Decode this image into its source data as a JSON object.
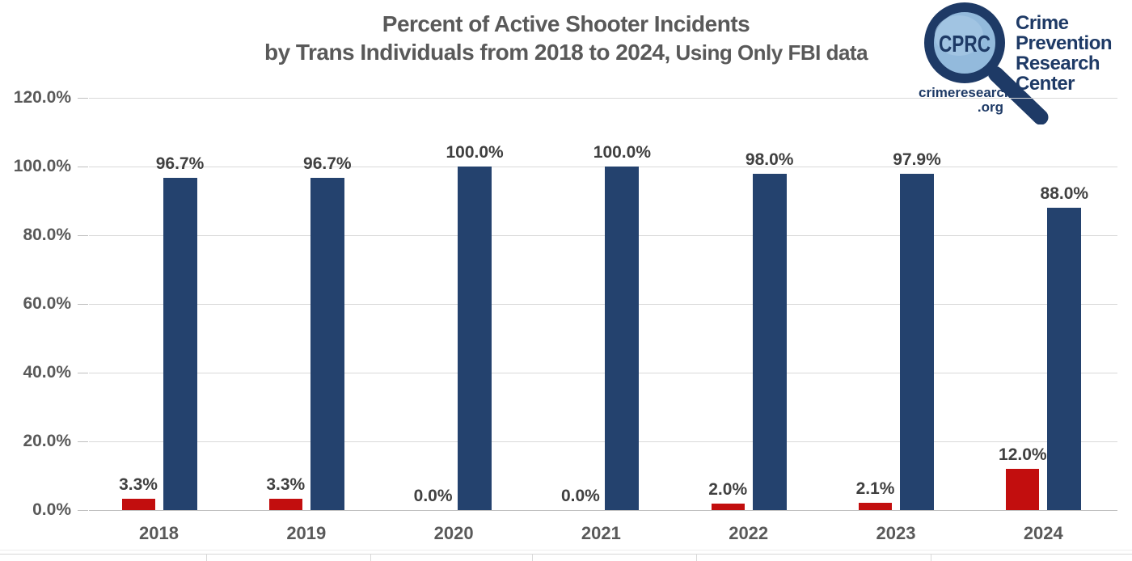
{
  "title": {
    "line1": "Percent of Active Shooter Incidents",
    "line2_main": "by Trans Individuals from 2018 to 2024,",
    "line2_suffix": " Using Only FBI data"
  },
  "logo": {
    "icon": "magnifying-glass-icon",
    "acronym": "CPRC",
    "name_lines": [
      "Crime",
      "Prevention",
      "Research",
      "Center"
    ],
    "url_top": "crimeresearch",
    "url_bottom": ".org"
  },
  "colors": {
    "bar_red": "#C20E0E",
    "bar_navy": "#24426E",
    "title_gray": "#595959",
    "data_label_gray": "#404040",
    "gridline": "#D9D9D9",
    "axis_line": "#BFBFBF",
    "logo_navy": "#1E3A66",
    "lens_blue": "#93BADC"
  },
  "chart_data": {
    "type": "bar",
    "title": "Percent of Active Shooter Incidents by Trans Individuals from 2018 to 2024, Using Only FBI data",
    "categories": [
      "2018",
      "2019",
      "2020",
      "2021",
      "2022",
      "2023",
      "2024"
    ],
    "series": [
      {
        "name": "red-series",
        "color": "#C20E0E",
        "values": [
          3.3,
          3.3,
          0.0,
          0.0,
          2.0,
          2.1,
          12.0
        ],
        "labels": [
          "3.3%",
          "3.3%",
          "0.0%",
          "0.0%",
          "2.0%",
          "2.1%",
          "12.0%"
        ]
      },
      {
        "name": "navy-series",
        "color": "#24426E",
        "values": [
          96.7,
          96.7,
          100.0,
          100.0,
          98.0,
          97.9,
          88.0
        ],
        "labels": [
          "96.7%",
          "96.7%",
          "100.0%",
          "100.0%",
          "98.0%",
          "97.9%",
          "88.0%"
        ]
      }
    ],
    "ylim": [
      0,
      120
    ],
    "ytick_step": 20,
    "yticks": [
      "0.0%",
      "20.0%",
      "40.0%",
      "60.0%",
      "80.0%",
      "100.0%",
      "120.0%"
    ],
    "grid": true,
    "legend": "none",
    "data_labels": true
  }
}
